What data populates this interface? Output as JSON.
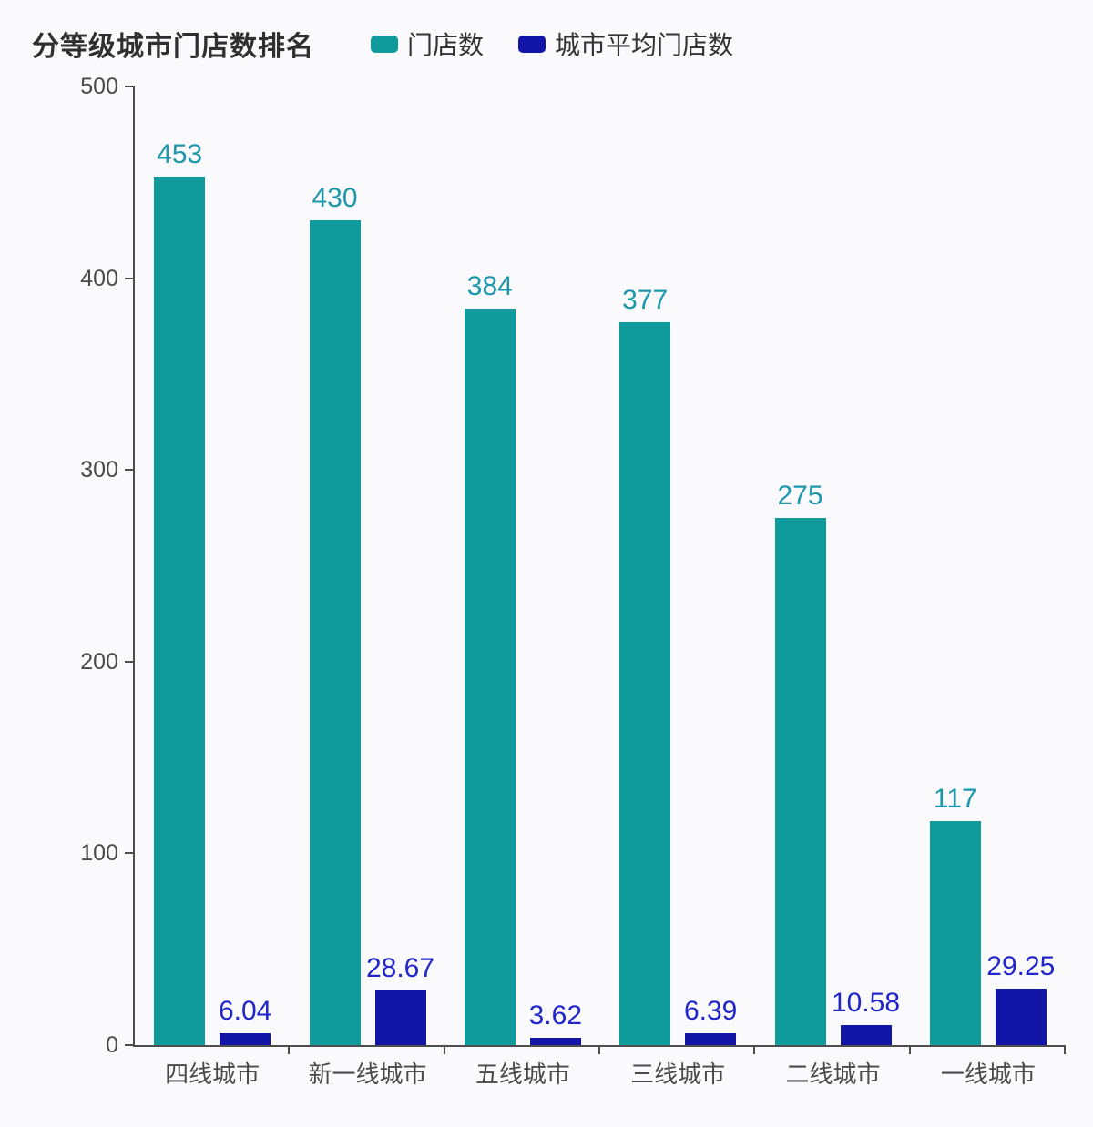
{
  "chart_data": {
    "type": "bar",
    "title": "分等级城市门店数排名",
    "categories": [
      "四线城市",
      "新一线城市",
      "五线城市",
      "三线城市",
      "二线城市",
      "一线城市"
    ],
    "series": [
      {
        "name": "门店数",
        "color": "#0f9a9b",
        "label_color": "#1d97ad",
        "values": [
          453,
          430,
          384,
          377,
          275,
          117
        ],
        "value_labels": [
          "453",
          "430",
          "384",
          "377",
          "275",
          "117"
        ]
      },
      {
        "name": "城市平均门店数",
        "color": "#1215a5",
        "label_color": "#2126cb",
        "values": [
          6.04,
          28.67,
          3.62,
          6.39,
          10.58,
          29.25
        ],
        "value_labels": [
          "6.04",
          "28.67",
          "3.62",
          "6.39",
          "10.58",
          "29.25"
        ]
      }
    ],
    "ylim": [
      0,
      500
    ],
    "yticks": [
      0,
      100,
      200,
      300,
      400,
      500
    ],
    "ytick_labels": [
      "0",
      "100",
      "200",
      "300",
      "400",
      "500"
    ],
    "xlabel": "",
    "ylabel": "",
    "grid": false,
    "legend_position": "top",
    "axis_color": "#4d4d4d",
    "tick_text_color": "#4a4a4a",
    "title_color": "#2f2f2f",
    "background_color": "#fafafc"
  }
}
